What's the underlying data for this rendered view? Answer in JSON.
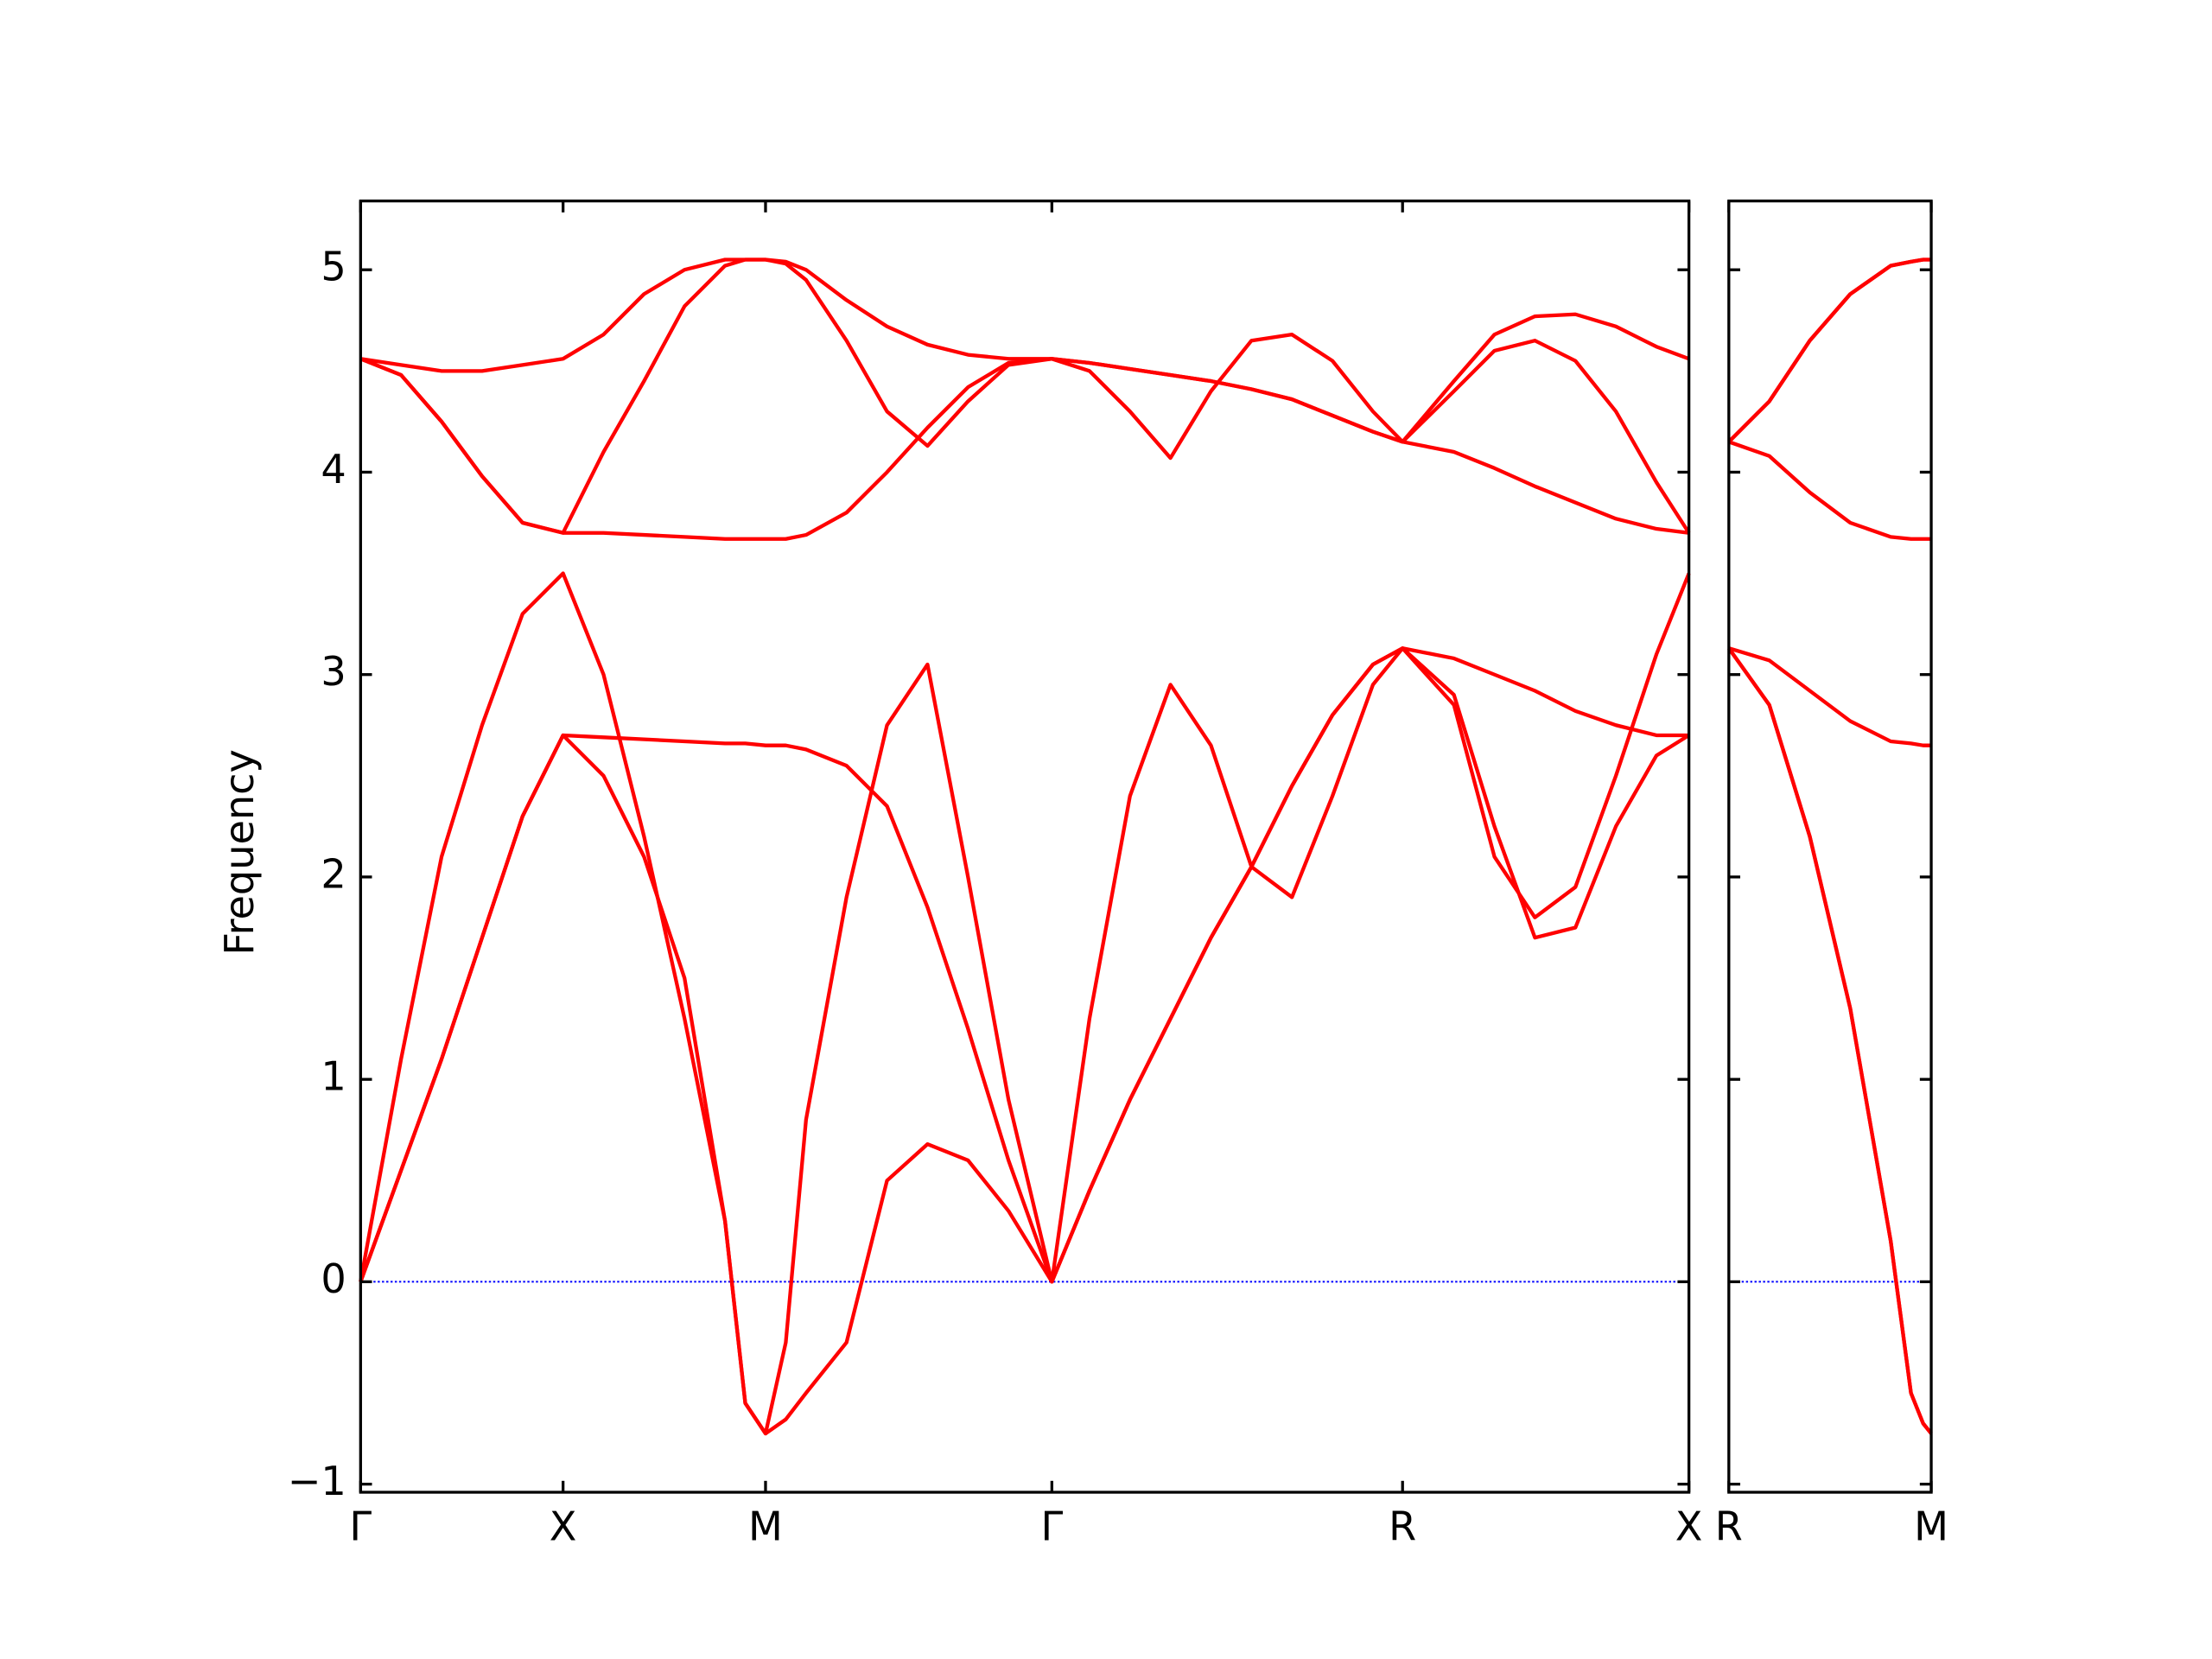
{
  "chart_data": [
    {
      "type": "line",
      "y_label": "Frequency",
      "x": [
        0,
        0.1,
        0.2,
        0.3,
        0.4,
        0.5,
        0.6,
        0.7,
        0.8,
        0.9,
        0.95,
        1.0,
        1.05,
        1.1,
        1.2,
        1.3,
        1.4,
        1.5,
        1.6,
        1.7071,
        1.8,
        1.9,
        2.0,
        2.1,
        2.2,
        2.3,
        2.4,
        2.5,
        2.5731,
        2.7,
        2.8,
        2.9,
        3.0,
        3.1,
        3.2,
        3.2803
      ],
      "xlim": [
        0,
        3.2803
      ],
      "xticks": [
        {
          "value": 0,
          "label": "Γ"
        },
        {
          "value": 0.5,
          "label": "X"
        },
        {
          "value": 1.0,
          "label": "M"
        },
        {
          "value": 1.7071,
          "label": "Γ"
        },
        {
          "value": 2.5731,
          "label": "R"
        },
        {
          "value": 3.2803,
          "label": "X"
        }
      ],
      "ylim": [
        -1.04,
        5.34
      ],
      "yticks": [
        {
          "value": -1,
          "label": "−1"
        },
        0,
        1,
        2,
        3,
        4,
        5
      ],
      "ytick_labels": true,
      "zero_line": true,
      "zero_line_color": "#0000ff",
      "series": [
        {
          "color": "#ff0000",
          "values": [
            0,
            0.55,
            1.1,
            1.7,
            2.3,
            2.7,
            2.5,
            2.1,
            1.5,
            0.3,
            -0.6,
            -0.75,
            -0.68,
            -0.55,
            -0.3,
            0.5,
            0.68,
            0.6,
            0.35,
            0,
            0.45,
            0.9,
            1.3,
            1.7,
            2.05,
            2.45,
            2.8,
            3.05,
            3.13,
            2.9,
            2.25,
            1.7,
            1.75,
            2.25,
            2.6,
            2.7
          ]
        },
        {
          "color": "#ff0000",
          "values": [
            0,
            1.1,
            2.1,
            2.75,
            3.3,
            3.5,
            3.0,
            2.2,
            1.3,
            0.3,
            -0.6,
            -0.75,
            -0.3,
            0.8,
            1.9,
            2.75,
            3.05,
            2.0,
            0.9,
            0,
            1.3,
            2.4,
            2.95,
            2.65,
            2.05,
            1.9,
            2.4,
            2.95,
            3.13,
            2.85,
            2.1,
            1.8,
            1.95,
            2.5,
            3.1,
            3.5
          ]
        },
        {
          "color": "#ff0000",
          "values": [
            0,
            0.55,
            1.1,
            1.7,
            2.3,
            2.7,
            2.69,
            2.68,
            2.67,
            2.66,
            2.66,
            2.65,
            2.65,
            2.63,
            2.55,
            2.35,
            1.85,
            1.25,
            0.6,
            0,
            0.45,
            0.9,
            1.3,
            1.7,
            2.05,
            2.45,
            2.8,
            3.05,
            3.13,
            3.08,
            3.0,
            2.92,
            2.82,
            2.75,
            2.7,
            2.7
          ]
        },
        {
          "color": "#ff0000",
          "values": [
            4.56,
            4.48,
            4.25,
            3.98,
            3.75,
            3.7,
            3.7,
            3.69,
            3.68,
            3.67,
            3.67,
            3.67,
            3.67,
            3.69,
            3.8,
            4.0,
            4.22,
            4.42,
            4.54,
            4.56,
            4.54,
            4.51,
            4.48,
            4.45,
            4.41,
            4.36,
            4.28,
            4.2,
            4.15,
            4.1,
            4.02,
            3.93,
            3.85,
            3.77,
            3.72,
            3.7
          ]
        },
        {
          "color": "#ff0000",
          "values": [
            4.56,
            4.48,
            4.25,
            3.98,
            3.75,
            3.7,
            4.1,
            4.45,
            4.82,
            5.02,
            5.05,
            5.05,
            5.03,
            4.95,
            4.65,
            4.3,
            4.13,
            4.35,
            4.53,
            4.56,
            4.5,
            4.3,
            4.07,
            4.4,
            4.65,
            4.68,
            4.55,
            4.3,
            4.15,
            4.4,
            4.6,
            4.65,
            4.55,
            4.3,
            3.95,
            3.7
          ]
        },
        {
          "color": "#ff0000",
          "values": [
            4.56,
            4.53,
            4.5,
            4.5,
            4.53,
            4.56,
            4.68,
            4.88,
            5.0,
            5.05,
            5.05,
            5.05,
            5.04,
            5.0,
            4.85,
            4.72,
            4.63,
            4.58,
            4.56,
            4.56,
            4.54,
            4.51,
            4.48,
            4.45,
            4.41,
            4.36,
            4.28,
            4.2,
            4.15,
            4.45,
            4.68,
            4.77,
            4.78,
            4.72,
            4.62,
            4.56
          ]
        }
      ]
    },
    {
      "type": "line",
      "x": [
        0,
        0.1,
        0.2,
        0.3,
        0.4,
        0.45,
        0.48,
        0.5
      ],
      "xlim": [
        0,
        0.5
      ],
      "xticks": [
        {
          "value": 0,
          "label": "R"
        },
        {
          "value": 0.5,
          "label": "M"
        }
      ],
      "ylim": [
        -1.04,
        5.34
      ],
      "yticks": [
        -1,
        0,
        1,
        2,
        3,
        4,
        5
      ],
      "ytick_labels": false,
      "zero_line": true,
      "zero_line_color": "#0000ff",
      "series": [
        {
          "color": "#ff0000",
          "values": [
            3.13,
            2.85,
            2.2,
            1.35,
            0.2,
            -0.55,
            -0.7,
            -0.75
          ]
        },
        {
          "color": "#ff0000",
          "values": [
            3.13,
            2.85,
            2.2,
            1.35,
            0.2,
            -0.55,
            -0.7,
            -0.75
          ]
        },
        {
          "color": "#ff0000",
          "values": [
            3.13,
            3.07,
            2.92,
            2.77,
            2.67,
            2.66,
            2.65,
            2.65
          ]
        },
        {
          "color": "#ff0000",
          "values": [
            4.15,
            4.08,
            3.9,
            3.75,
            3.68,
            3.67,
            3.67,
            3.67
          ]
        },
        {
          "color": "#ff0000",
          "values": [
            4.15,
            4.35,
            4.65,
            4.88,
            5.02,
            5.04,
            5.05,
            5.05
          ]
        },
        {
          "color": "#ff0000",
          "values": [
            4.15,
            4.35,
            4.65,
            4.88,
            5.02,
            5.04,
            5.05,
            5.05
          ]
        }
      ]
    }
  ]
}
